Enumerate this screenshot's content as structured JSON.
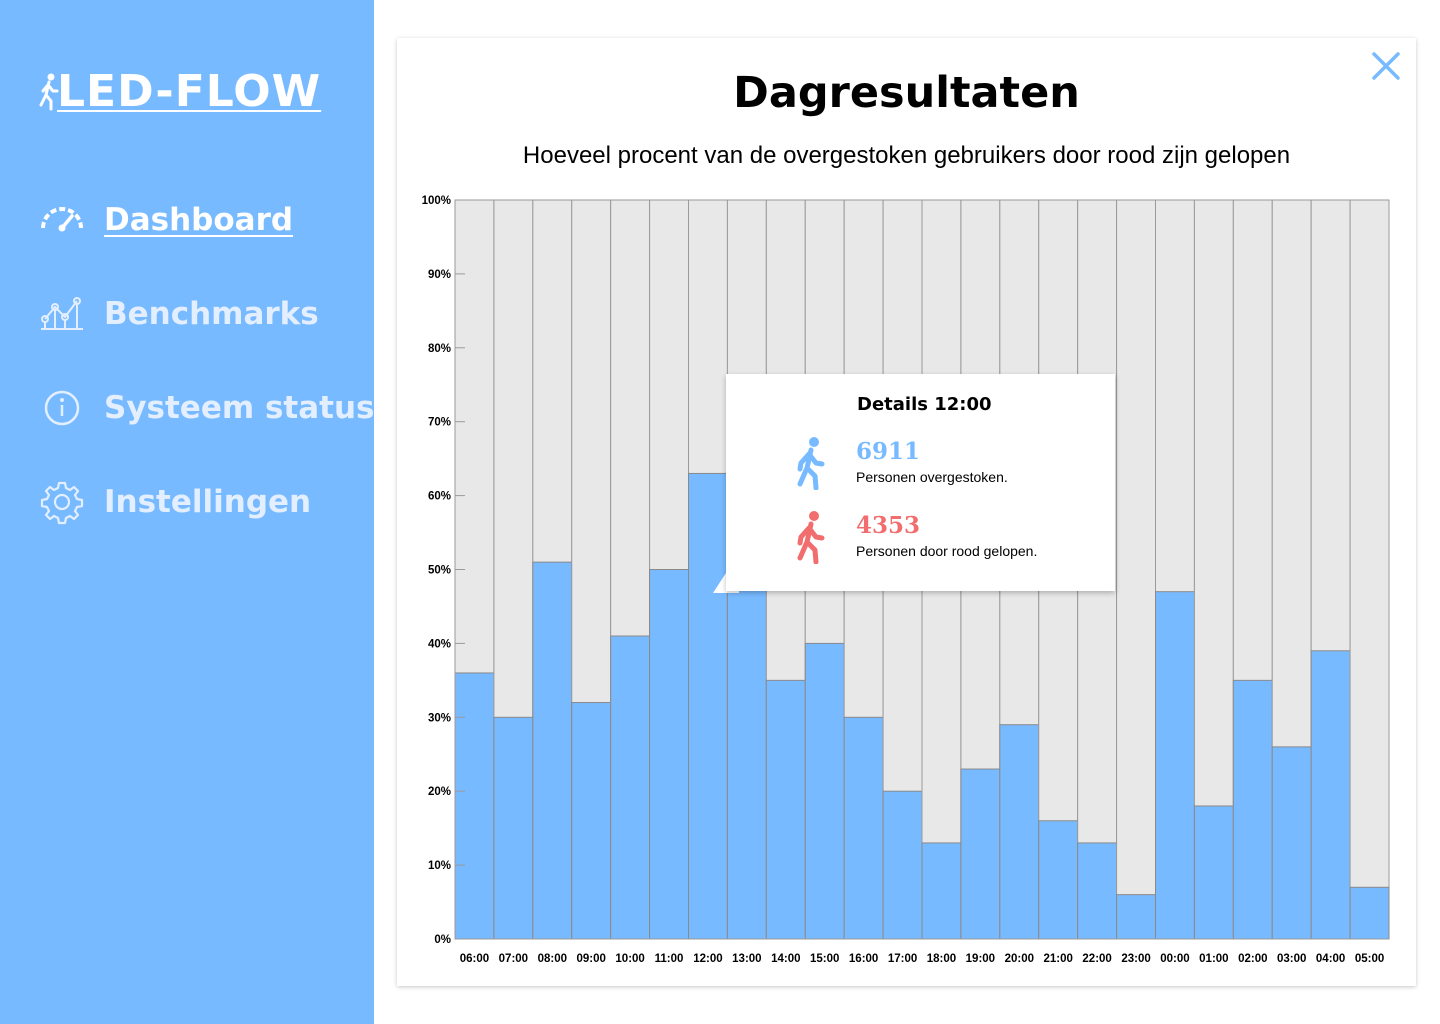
{
  "app": {
    "name": "LED-FLOW"
  },
  "sidebar": {
    "items": [
      {
        "label": "Dashboard",
        "icon": "speedometer-icon",
        "active": true
      },
      {
        "label": "Benchmarks",
        "icon": "line-chart-icon",
        "active": false
      },
      {
        "label": "Systeem status",
        "icon": "info-icon",
        "active": false
      },
      {
        "label": "Instellingen",
        "icon": "gear-icon",
        "active": false
      }
    ]
  },
  "panel": {
    "title": "Dagresultaten",
    "subtitle": "Hoeveel procent van de overgestoken gebruikers door rood zijn gelopen",
    "close_icon": "close-icon"
  },
  "tooltip": {
    "title": "Details 12:00",
    "crossed_value": "6911",
    "crossed_label": "Personen overgestoken.",
    "red_value": "4353",
    "red_label": "Personen door rood gelopen."
  },
  "colors": {
    "sidebar": "#78baff",
    "bar": "#78baff",
    "bar_background": "#e8e8e8",
    "red": "#f26d6d",
    "accent": "#78baff"
  },
  "chart_data": {
    "type": "bar",
    "title": "Hoeveel procent van de overgestoken gebruikers door rood zijn gelopen",
    "categories": [
      "06:00",
      "07:00",
      "08:00",
      "09:00",
      "10:00",
      "11:00",
      "12:00",
      "13:00",
      "14:00",
      "15:00",
      "16:00",
      "17:00",
      "18:00",
      "19:00",
      "20:00",
      "21:00",
      "22:00",
      "23:00",
      "00:00",
      "01:00",
      "02:00",
      "03:00",
      "04:00",
      "05:00"
    ],
    "values": [
      36,
      30,
      51,
      32,
      41,
      50,
      63,
      49,
      35,
      40,
      30,
      20,
      13,
      23,
      29,
      16,
      13,
      6,
      47,
      18,
      35,
      26,
      39,
      7
    ],
    "yticks": [
      "0%",
      "10%",
      "20%",
      "30%",
      "40%",
      "50%",
      "60%",
      "70%",
      "80%",
      "90%",
      "100%"
    ],
    "ylim": [
      0,
      100
    ],
    "xlabel": "",
    "ylabel": "",
    "grid": false,
    "legend": "none"
  }
}
